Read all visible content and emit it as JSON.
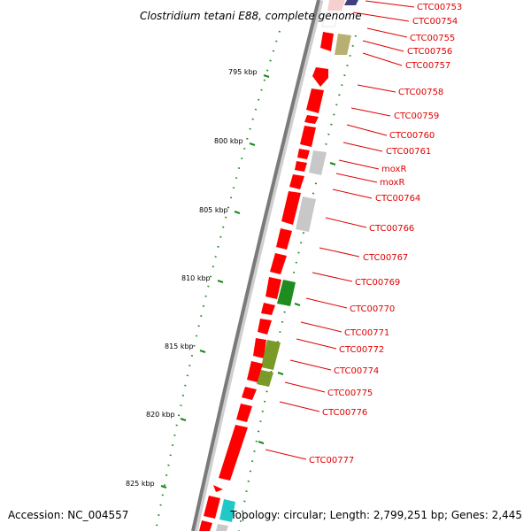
{
  "title": "Clostridium tetani E88, complete genome",
  "footer": {
    "accession": "Accession: NC_004557",
    "topology": "Topology: circular; Length: 2,799,251 bp; Genes: 2,445"
  },
  "colors": {
    "backbone": "#7a7a7a",
    "tick": "#1a8a1a",
    "label": "#e00000",
    "gene_red": "#ff0000",
    "gene_grey": "#c8c8c8",
    "gene_green": "#1e8c1e",
    "gene_olive": "#7a9a28",
    "gene_khaki": "#b8b070",
    "gene_navy": "#404080",
    "gene_cyan": "#20c8c8"
  },
  "ticks": [
    "795 kbp",
    "800 kbp",
    "805 kbp",
    "810 kbp",
    "815 kbp",
    "820 kbp",
    "825 kbp"
  ],
  "genes": [
    "CTC00753",
    "CTC00754",
    "CTC00755",
    "CTC00756",
    "CTC00757",
    "CTC00758",
    "CTC00759",
    "CTC00760",
    "CTC00761",
    "moxR",
    "moxR",
    "CTC00764",
    "CTC00766",
    "CTC00767",
    "CTC00769",
    "CTC00770",
    "CTC00771",
    "CTC00772",
    "CTC00774",
    "CTC00775",
    "CTC00776",
    "CTC00777"
  ]
}
